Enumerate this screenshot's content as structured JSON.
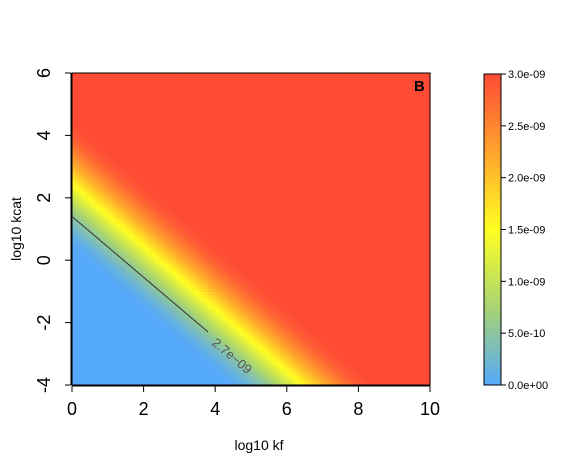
{
  "chart_data": {
    "type": "heatmap",
    "panel_label": "B",
    "xlabel": "log10 kf",
    "ylabel": "log10 kcat",
    "xlim": [
      0,
      10
    ],
    "ylim": [
      -4,
      6
    ],
    "x_ticks": [
      "0",
      "2",
      "4",
      "6",
      "8",
      "10"
    ],
    "y_ticks": [
      "-4",
      "-2",
      "0",
      "2",
      "4",
      "6"
    ],
    "z_range": [
      0,
      3e-09
    ],
    "colorbar": {
      "ticks": [
        "0.0e+00",
        "5.0e-10",
        "1.0e-09",
        "1.5e-09",
        "2.0e-09",
        "2.5e-09",
        "3.0e-09"
      ],
      "values": [
        0,
        5e-10,
        1e-09,
        1.5e-09,
        2e-09,
        2.5e-09,
        3e-09
      ],
      "colors": [
        "#55a9fb",
        "#a8d472",
        "#ffff22",
        "#ffa32d",
        "#ff4b36"
      ]
    },
    "surface": {
      "description_of_gradient_axis": "kf + kcat (log10 units)",
      "transition_start": 0.3,
      "transition_end": 4.6
    },
    "contour": {
      "label": "2.7e−09",
      "from": [
        0,
        1.4
      ],
      "to": [
        3.8,
        -2.3
      ]
    }
  }
}
